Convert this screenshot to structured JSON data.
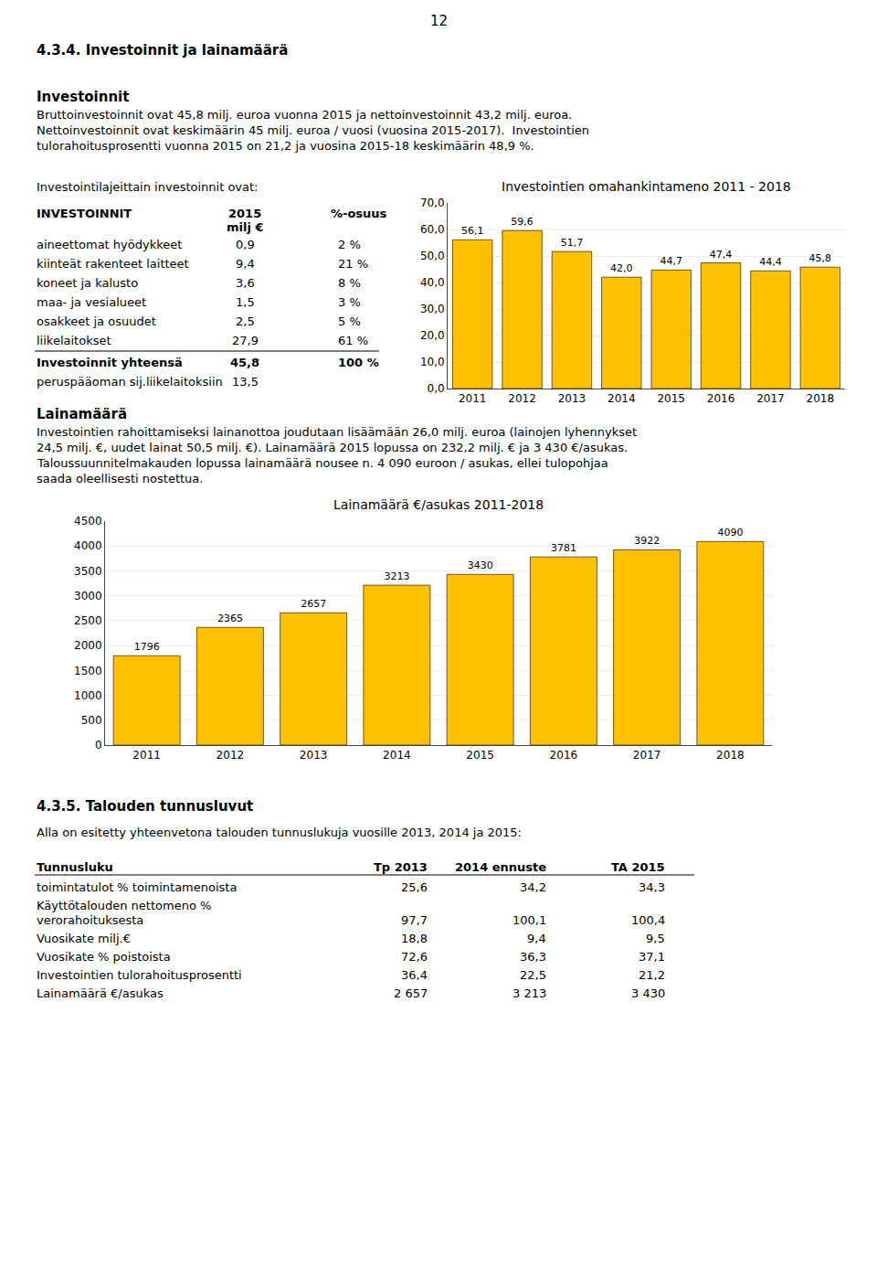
{
  "annotations": [
    "12",
    "4.3.4. Investoinnit ja lainamäärä",
    "Investoinnit",
    "Bruttoinvestoinnit ovat 45,8 milj. euroa vuonna 2015 ja nettoinvestoinnit 43,2 milj. euroa.",
    "Nettoinvestoinnit ovat keskimäärin 45 milj. euroa / vuosi (vuosina 2015-2017).  Investointien",
    "tulorahoitusprosentti vuonna 2015 on 21,2 ja vuosina 2015-18 keskimäärin 48,9 %.",
    "Investointilajeittain investoinnit ovat:",
    [
      "INVESTOINNIT",
      "2015",
      "milj €",
      "%-osuus"
    ],
    [
      "aineettomat hyödykkeet",
      "0,9",
      "2 %"
    ],
    [
      "kiinteät rakenteet laitteet",
      "9,4",
      "21 %"
    ],
    [
      "koneet ja kalusto",
      "3,6",
      "8 %"
    ],
    [
      "maa- ja vesialueet",
      "1,5",
      "3 %"
    ],
    [
      "osakkeet ja osuudet",
      "2,5",
      "5 %"
    ],
    [
      "liikelaitokset",
      "27,9",
      "61 %"
    ],
    [
      "Investoinnit yhteensä",
      "45,8",
      "100 %"
    ],
    [
      "peruspääoman sij.liikelaitoksiin",
      "13,5"
    ],
    "Lainamäärä",
    "Investointien rahoittamiseksi lainanottoa joudutaan lisäämään 26,0 milj. euroa (lainojen lyhennykset",
    "24,5 milj. €, uudet lainat 50,5 milj. €). Lainamäärä 2015 lopussa on 232,2 milj. € ja 3 430 €/asukas.",
    "Taloussuunnitelmakauden lopussa lainamäärä nousee n. 4 090 euroon / asukas, ellei tulopohjaa",
    "saada oleellisesti nostettua.",
    "4.3.5. Talouden tunnusluvut",
    "Alla on esitetty yhteenvetona talouden tunnuslukuja vuosille 2013, 2014 ja 2015:",
    [
      "Tunnusluku",
      "Tp 2013",
      "2014 ennuste",
      "TA 2015"
    ],
    [
      "toimintatulot % toimintamenoista",
      "25,6",
      "34,2",
      "34,3"
    ],
    [
      "Käyttötalouden nettomeno %"
    ],
    [
      "verorahoituksesta",
      "97,7",
      "100,1",
      "100,4"
    ],
    [
      "Vuosikate milj.€",
      "18,8",
      "9,4",
      "9,5"
    ],
    [
      "Vuosikate % poistoista",
      "72,6",
      "36,3",
      "37,1"
    ],
    [
      "Investointien tulorahoitusprosentti",
      "36,4",
      "22,5",
      "21,2"
    ],
    [
      "Lainamäärä €/asukas",
      "2 657",
      "3 213",
      "3 430"
    ]
  ],
  "chart_data": [
    {
      "type": "bar",
      "title": "Investointien omahankintameno 2011 - 2018",
      "categories": [
        "2011",
        "2012",
        "2013",
        "2014",
        "2015",
        "2016",
        "2017",
        "2018"
      ],
      "values": [
        56.1,
        59.6,
        51.7,
        42.0,
        44.7,
        47.4,
        44.4,
        45.8
      ],
      "value_labels": [
        "56,1",
        "59,6",
        "51,7",
        "42,0",
        "44,7",
        "47,4",
        "44,4",
        "45,8"
      ],
      "data_labels": true,
      "color": "#FFC000",
      "ylim": [
        0,
        70
      ],
      "yticks": [
        {
          "value": 0,
          "label": "0,0"
        },
        {
          "value": 10,
          "label": "10,0"
        },
        {
          "value": 20,
          "label": "20,0"
        },
        {
          "value": 30,
          "label": "30,0"
        },
        {
          "value": 40,
          "label": "40,0"
        },
        {
          "value": 50,
          "label": "50,0"
        },
        {
          "value": 60,
          "label": "60,0"
        },
        {
          "value": 70,
          "label": "70,0"
        }
      ],
      "grid": true
    },
    {
      "type": "bar",
      "title": "Lainamäärä €/asukas 2011-2018",
      "categories": [
        "2011",
        "2012",
        "2013",
        "2014",
        "2015",
        "2016",
        "2017",
        "2018"
      ],
      "values": [
        1796,
        2365,
        2657,
        3213,
        3430,
        3781,
        3922,
        4090
      ],
      "data_labels": true,
      "color": "#FFC000",
      "ylim": [
        0,
        4500
      ],
      "yticks": [
        0,
        500,
        1000,
        1500,
        2000,
        2500,
        3000,
        3500,
        4000,
        4500
      ],
      "grid": true
    }
  ]
}
